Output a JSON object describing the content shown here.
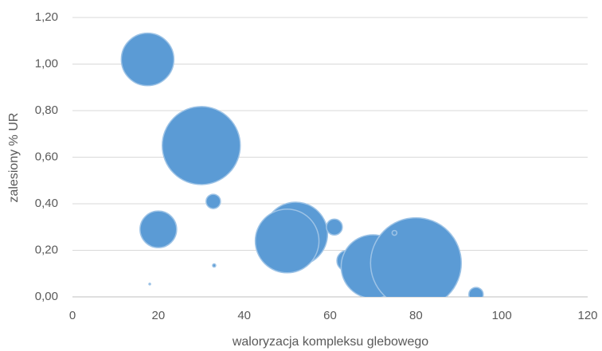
{
  "chart_data": {
    "type": "bubble",
    "x_label": "waloryzacja kompleksu glebowego",
    "y_label": "zalesiony % UR",
    "x": [
      17.5,
      30,
      32.8,
      20,
      52,
      50,
      61,
      64,
      70,
      80,
      94,
      33,
      18,
      75
    ],
    "values": [
      1.02,
      0.65,
      0.41,
      0.29,
      0.27,
      0.24,
      0.3,
      0.155,
      0.13,
      0.145,
      0.01,
      0.135,
      0.055,
      0.275
    ],
    "sizes": [
      1089,
      2401,
      81,
      529,
      1600,
      1600,
      100,
      169,
      1600,
      3249,
      81,
      4,
      1,
      9
    ],
    "color": "#5b9bd5",
    "xlim": [
      0,
      120
    ],
    "xticks": [
      0,
      20,
      40,
      60,
      80,
      100,
      120
    ],
    "ylim": [
      0,
      1.2
    ],
    "yticks": [
      {
        "value": 0,
        "label": "0,00"
      },
      {
        "value": 0.2,
        "label": "0,20"
      },
      {
        "value": 0.4,
        "label": "0,40"
      },
      {
        "value": 0.6,
        "label": "0,60"
      },
      {
        "value": 0.8,
        "label": "0,80"
      },
      {
        "value": 1.0,
        "label": "1,00"
      },
      {
        "value": 1.2,
        "label": "1,20"
      }
    ],
    "grid": true
  }
}
